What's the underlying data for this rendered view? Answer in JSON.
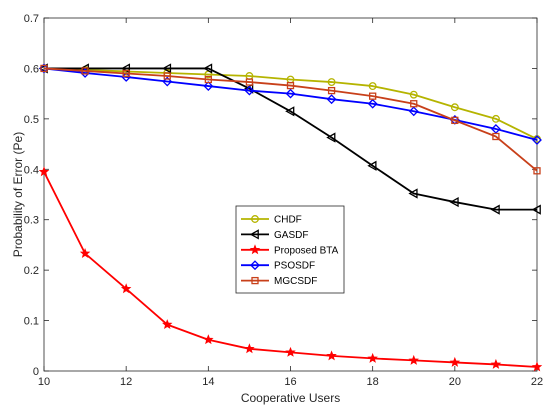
{
  "chart_data": {
    "type": "line",
    "title": "",
    "xlabel": "Cooperative Users",
    "ylabel": "Probability of Error (Pe)",
    "xlim": [
      10,
      22
    ],
    "ylim": [
      0,
      0.7
    ],
    "xticks": [
      10,
      12,
      14,
      16,
      18,
      20,
      22
    ],
    "yticks": [
      0,
      0.1,
      0.2,
      0.3,
      0.4,
      0.5,
      0.6,
      0.7
    ],
    "grid": false,
    "legend_position": "center",
    "x": [
      10,
      11,
      12,
      13,
      14,
      15,
      16,
      17,
      18,
      19,
      20,
      21,
      22
    ],
    "series": [
      {
        "name": "CHDF",
        "color": "#b5b400",
        "marker": "circle",
        "values": [
          0.6,
          0.597,
          0.594,
          0.591,
          0.588,
          0.585,
          0.578,
          0.573,
          0.565,
          0.548,
          0.523,
          0.5,
          0.46
        ]
      },
      {
        "name": "GASDF",
        "color": "#000000",
        "marker": "triangle-left",
        "values": [
          0.6,
          0.6,
          0.6,
          0.6,
          0.6,
          0.56,
          0.515,
          0.463,
          0.407,
          0.352,
          0.335,
          0.32,
          0.32
        ]
      },
      {
        "name": "Proposed BTA",
        "color": "#ff0000",
        "marker": "star",
        "values": [
          0.395,
          0.233,
          0.163,
          0.092,
          0.062,
          0.044,
          0.037,
          0.03,
          0.025,
          0.021,
          0.017,
          0.013,
          0.008
        ]
      },
      {
        "name": "PSOSDF",
        "color": "#0000ff",
        "marker": "diamond",
        "values": [
          0.6,
          0.591,
          0.583,
          0.574,
          0.565,
          0.556,
          0.55,
          0.539,
          0.53,
          0.515,
          0.498,
          0.48,
          0.458
        ]
      },
      {
        "name": "MGCSDF",
        "color": "#c8401a",
        "marker": "square",
        "values": [
          0.6,
          0.595,
          0.59,
          0.585,
          0.578,
          0.573,
          0.566,
          0.556,
          0.545,
          0.53,
          0.497,
          0.465,
          0.397
        ]
      }
    ]
  }
}
